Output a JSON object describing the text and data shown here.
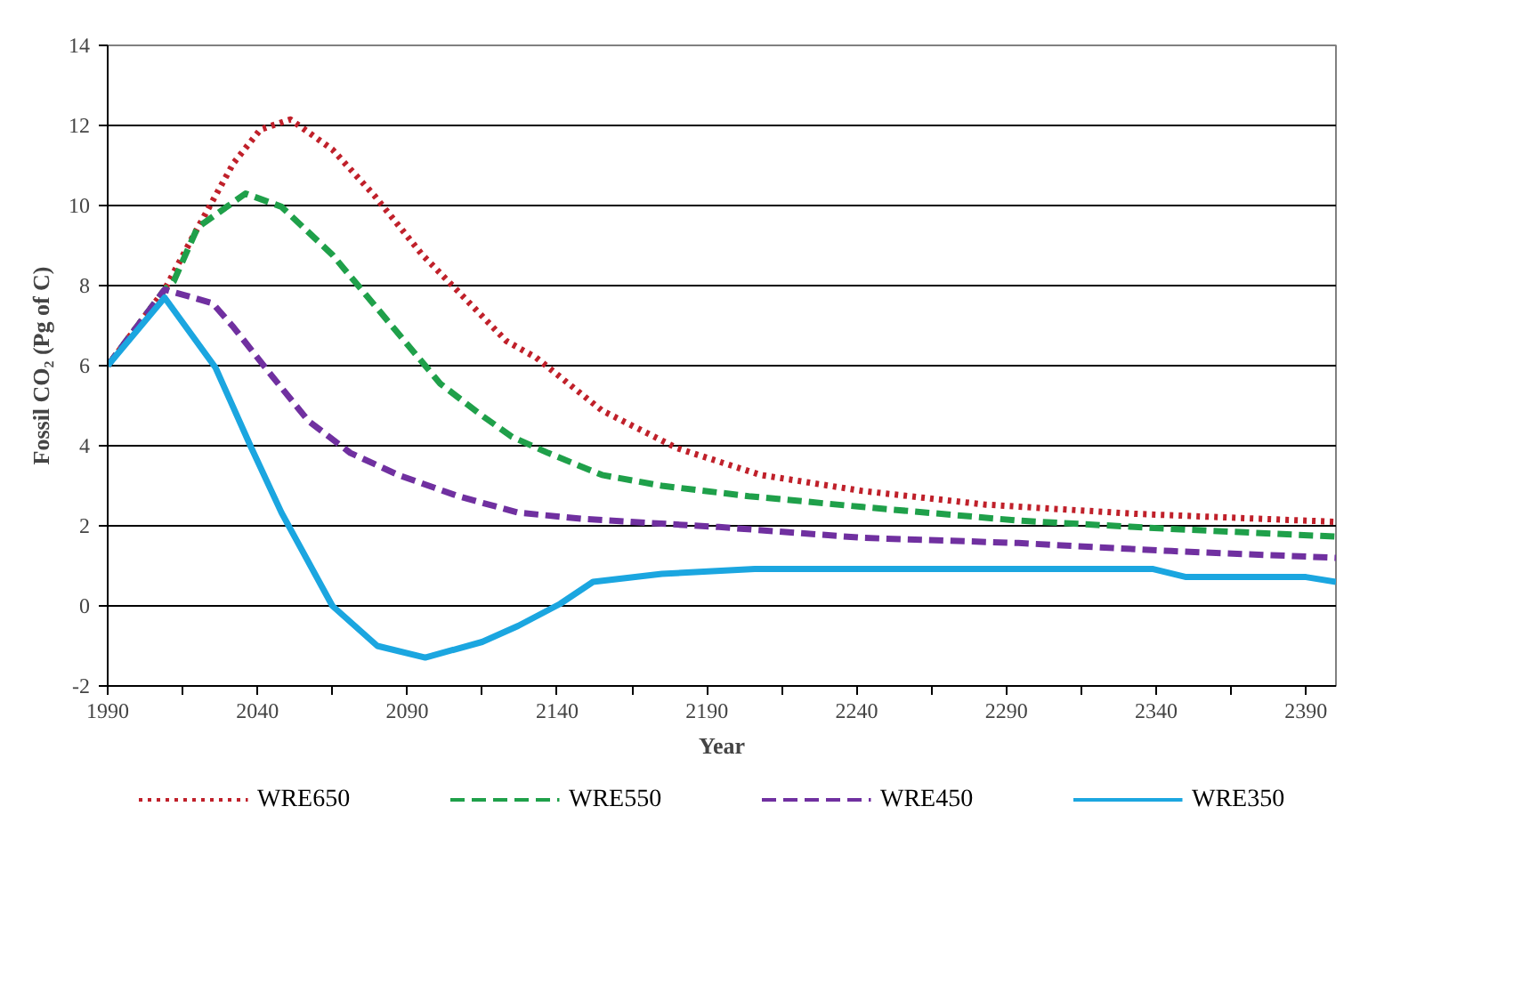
{
  "chart_data": {
    "type": "line",
    "xlabel": "Year",
    "ylabel": "Fossil CO₂ (Pg of C)",
    "xlim": [
      1990,
      2400
    ],
    "ylim": [
      -2,
      14
    ],
    "xticks": [
      1990,
      {
        "value": 2015,
        "label": null
      },
      2040,
      {
        "value": 2065,
        "label": null
      },
      2090,
      {
        "value": 2115,
        "label": null
      },
      2140,
      {
        "value": 2165,
        "label": null
      },
      2190,
      {
        "value": 2215,
        "label": null
      },
      2240,
      {
        "value": 2265,
        "label": null
      },
      2290,
      {
        "value": 2315,
        "label": null
      },
      2340,
      {
        "value": 2365,
        "label": null
      },
      2390
    ],
    "yticks": [
      -2,
      0,
      2,
      4,
      6,
      8,
      10,
      12,
      14
    ],
    "grid": "y",
    "legend": "bottom",
    "marker": "none",
    "series": [
      {
        "name": "WRE650",
        "color": "#c0202a",
        "line_style": "dotted",
        "x": [
          1990,
          2009,
          2019,
          2032,
          2041,
          2051,
          2065,
          2079,
          2095,
          2109,
          2123,
          2133,
          2155,
          2180,
          2208,
          2242,
          2283,
          2333,
          2400
        ],
        "values": [
          6.0,
          7.9,
          9.3,
          11.06,
          11.9,
          12.15,
          11.4,
          10.25,
          8.77,
          7.7,
          6.62,
          6.2,
          4.88,
          3.94,
          3.27,
          2.87,
          2.53,
          2.3,
          2.1
        ]
      },
      {
        "name": "WRE550",
        "color": "#1fa04a",
        "line_style": "dashed",
        "x": [
          1990,
          2009,
          2012,
          2020,
          2036,
          2048,
          2065,
          2083,
          2101,
          2115,
          2125,
          2137,
          2155,
          2175,
          2204,
          2242,
          2294,
          2343,
          2400
        ],
        "values": [
          6.0,
          7.9,
          8.1,
          9.45,
          10.3,
          9.97,
          8.77,
          7.16,
          5.55,
          4.75,
          4.22,
          3.82,
          3.27,
          3.0,
          2.74,
          2.47,
          2.13,
          1.93,
          1.73
        ]
      },
      {
        "name": "WRE450",
        "color": "#7030a0",
        "line_style": "dashed",
        "x": [
          1990,
          2009,
          2025,
          2032,
          2044,
          2057,
          2071,
          2087,
          2107,
          2127,
          2149,
          2194,
          2242,
          2294,
          2345,
          2400
        ],
        "values": [
          6.0,
          7.9,
          7.56,
          6.96,
          5.82,
          4.62,
          3.82,
          3.27,
          2.74,
          2.33,
          2.17,
          1.97,
          1.7,
          1.57,
          1.37,
          1.2
        ]
      },
      {
        "name": "WRE350",
        "color": "#1ba6e0",
        "line_style": "solid",
        "x": [
          1990,
          2009,
          2026,
          2038,
          2048,
          2065,
          2080,
          2096,
          2115,
          2127,
          2141,
          2152,
          2175,
          2206,
          2339,
          2350,
          2390,
          2400
        ],
        "values": [
          6.0,
          7.7,
          5.95,
          3.94,
          2.33,
          0.0,
          -1.0,
          -1.29,
          -0.9,
          -0.5,
          0.05,
          0.6,
          0.8,
          0.92,
          0.92,
          0.72,
          0.72,
          0.6
        ]
      }
    ]
  }
}
